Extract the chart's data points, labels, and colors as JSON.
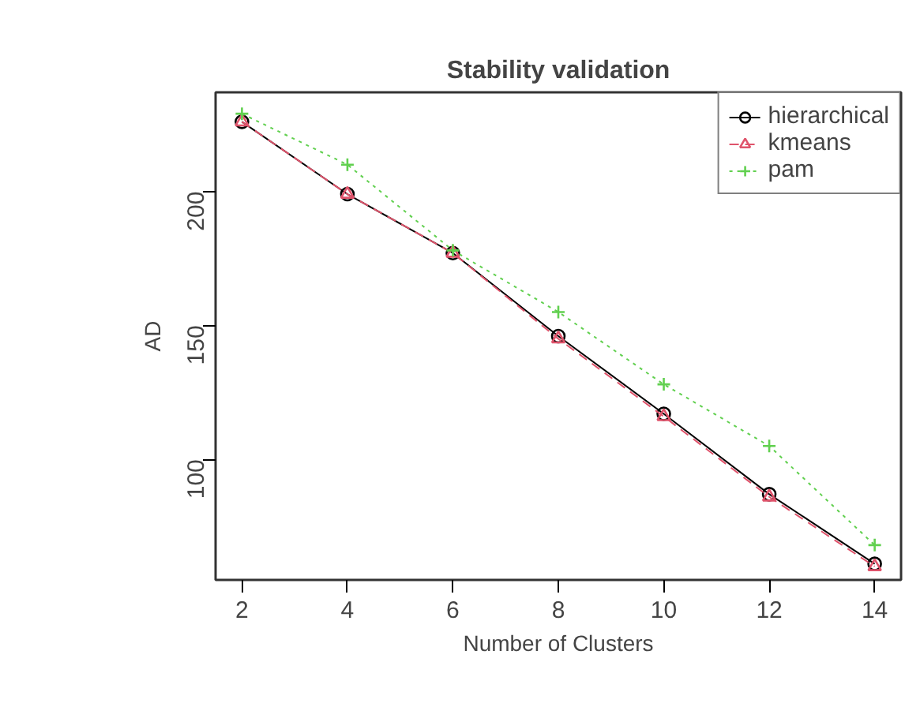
{
  "chart_data": {
    "type": "line",
    "title": "Stability validation",
    "xlabel": "Number of Clusters",
    "ylabel": "AD",
    "x": [
      2,
      4,
      6,
      8,
      10,
      12,
      14
    ],
    "series": [
      {
        "name": "hierarchical",
        "color": "#000000",
        "line_style": "solid",
        "marker": "circle",
        "values": [
          226,
          199,
          177,
          146,
          117,
          87,
          61
        ]
      },
      {
        "name": "kmeans",
        "color": "#df536b",
        "line_style": "dashed",
        "marker": "triangle",
        "values": [
          226,
          199,
          177,
          145,
          116,
          86,
          60
        ]
      },
      {
        "name": "pam",
        "color": "#61d04f",
        "line_style": "dotted",
        "marker": "cross",
        "values": [
          229,
          210,
          178,
          155,
          128,
          105,
          68
        ]
      }
    ],
    "xlim": [
      1.5,
      14.5
    ],
    "ylim": [
      55,
      237
    ],
    "xticks": [
      2,
      4,
      6,
      8,
      10,
      12,
      14
    ],
    "yticks": [
      100,
      150,
      200
    ],
    "grid": false,
    "legend": "top right"
  }
}
